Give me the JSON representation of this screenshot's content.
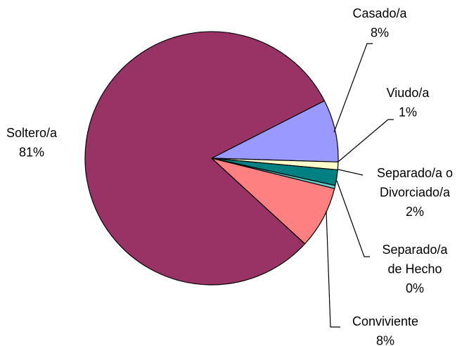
{
  "chart_data": {
    "type": "pie",
    "categories": [
      "Casado/a",
      "Viudo/a",
      "Separado/a o Divorciado/a",
      "Separado/a de Hecho",
      "Conviviente",
      "Soltero/a"
    ],
    "values": [
      8,
      1,
      2,
      0.4,
      8,
      81
    ],
    "value_labels": [
      "8%",
      "1%",
      "2%",
      "0%",
      "8%",
      "81%"
    ],
    "colors": [
      "#9999ff",
      "#ffffcc",
      "#008080",
      "#66cccc",
      "#ff8080",
      "#993366"
    ]
  }
}
